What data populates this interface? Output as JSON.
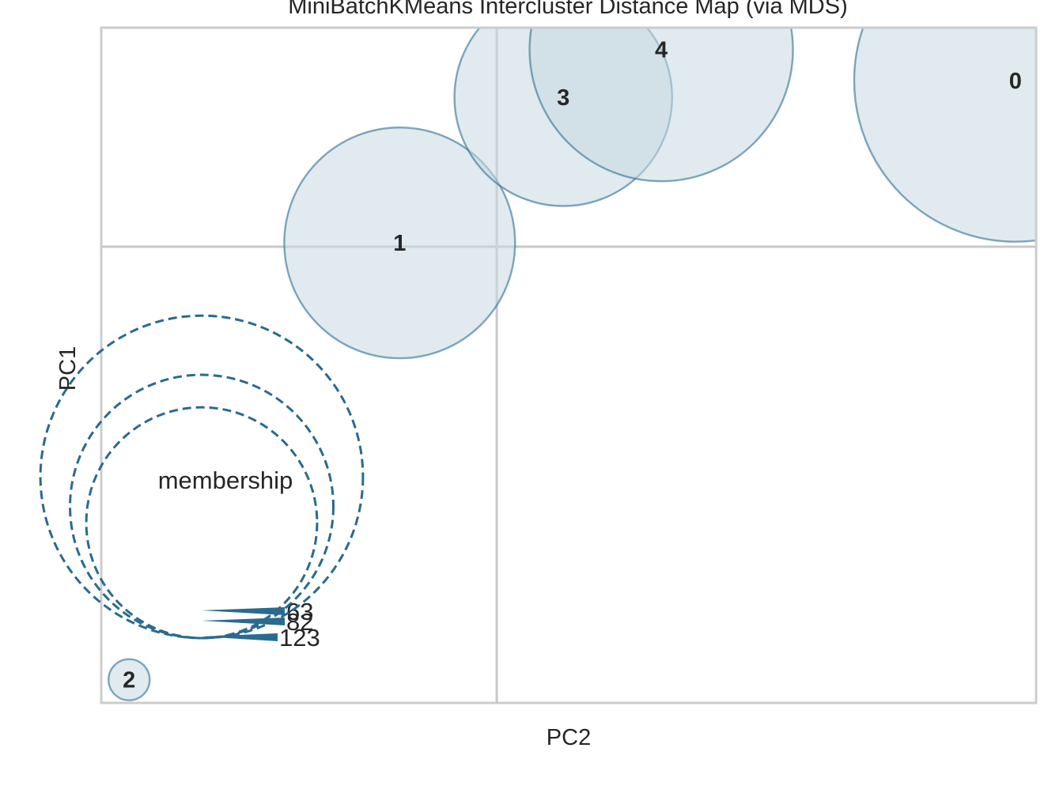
{
  "chart_data": {
    "type": "scatter",
    "title": "MiniBatchKMeans Intercluster Distance Map (via MDS)",
    "xlabel": "PC2",
    "ylabel": "PC1",
    "grid": true,
    "clusters": [
      {
        "label": "0",
        "x": 0.577,
        "y": 0.129,
        "membership": 123
      },
      {
        "label": "1",
        "x": -0.108,
        "y": 0.003,
        "membership": 63
      },
      {
        "label": "2",
        "x": -0.409,
        "y": -0.336,
        "membership": 2
      },
      {
        "label": "3",
        "x": 0.074,
        "y": 0.116,
        "membership": 56
      },
      {
        "label": "4",
        "x": 0.183,
        "y": 0.153,
        "membership": 82
      }
    ],
    "xlim": [
      -0.44,
      0.6
    ],
    "ylim": [
      -0.354,
      0.17
    ],
    "size_legend": {
      "title": "membership",
      "values": [
        63,
        82,
        123
      ],
      "position": "lower-left"
    },
    "colors": {
      "fill": "#c6d8e2",
      "edge": "#2e6e93",
      "legend": "#2a6a8f",
      "grid": "#c8c8c8",
      "frame": "#cccccc"
    }
  }
}
